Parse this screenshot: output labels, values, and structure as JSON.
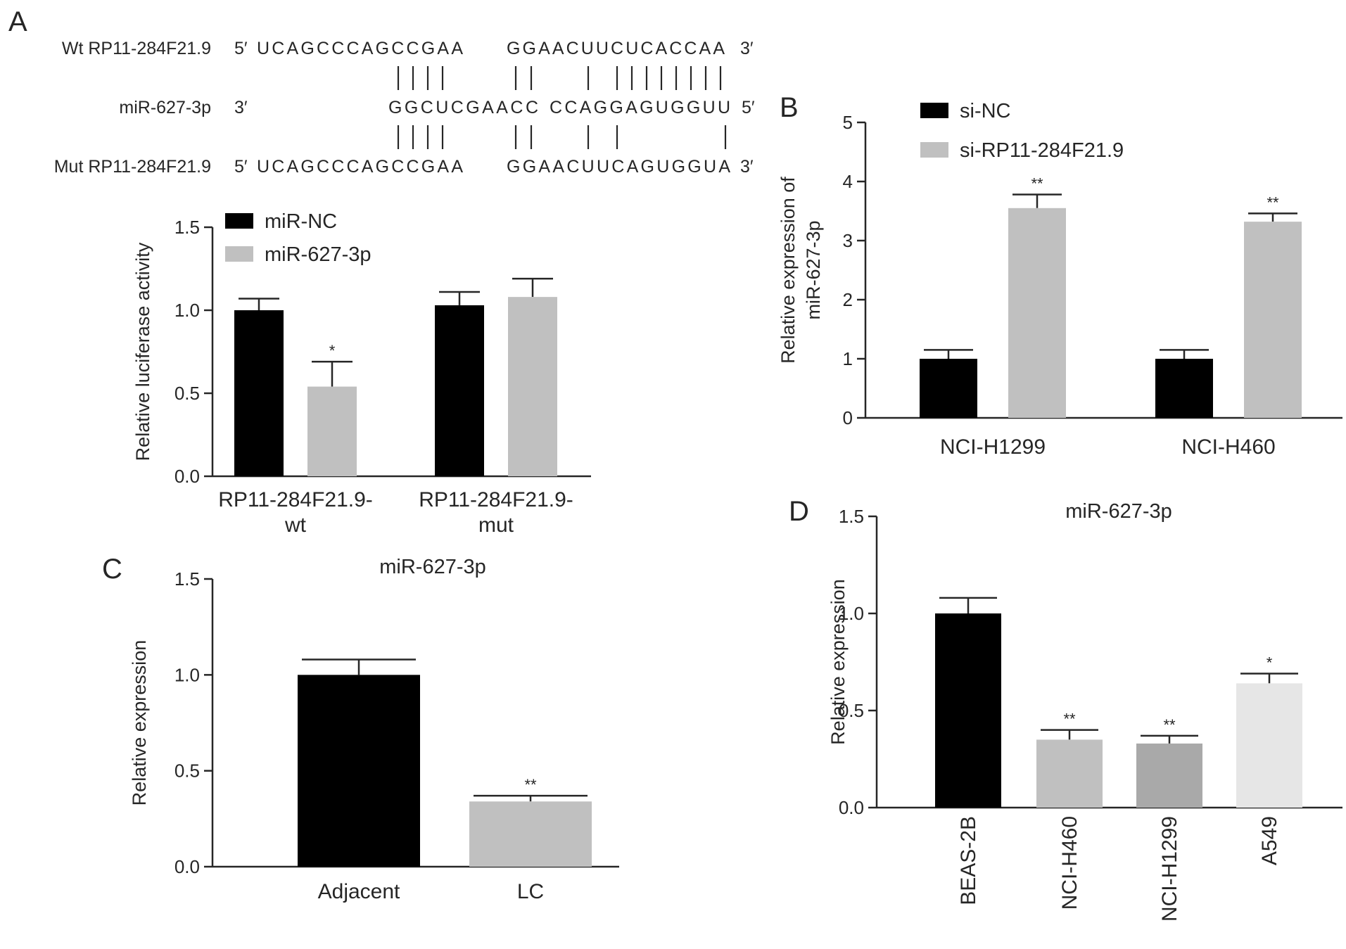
{
  "panel_labels": [
    "A",
    "B",
    "C",
    "D"
  ],
  "sequence_alignment": {
    "rows": [
      {
        "name": "Wt RP11-284F21.9",
        "end5": "5′",
        "left": "UCAGCCCAGCCGAA",
        "right": "GGAACUUCUCACCAA",
        "end3": "3′"
      },
      {
        "name": "miR-627-3p",
        "end5": "3′",
        "left": "GGCUCGAACC",
        "right": "CCAGGAGUGGUU",
        "end3": "5′"
      },
      {
        "name": "Mut RP11-284F21.9",
        "end5": "5′",
        "left": "UCAGCCCAGCCGAA",
        "right": "GGAACUUCAGUGGUA",
        "end3": "3′"
      }
    ]
  },
  "chart_data": [
    {
      "panel": "A",
      "type": "bar",
      "title": "",
      "ylabel": "Relative luciferase activity",
      "xlabel": "",
      "ylim": [
        0,
        1.5
      ],
      "yticks": [
        "0.0",
        "0.5",
        "1.0",
        "1.5"
      ],
      "categories": [
        [
          "RP11-284F21.9-",
          "wt"
        ],
        [
          "RP11-284F21.9-",
          "mut"
        ]
      ],
      "series": [
        {
          "name": "miR-NC",
          "color": "#000000",
          "values": [
            1.0,
            1.03
          ],
          "errors": [
            0.07,
            0.08
          ],
          "sig": [
            "",
            ""
          ]
        },
        {
          "name": "miR-627-3p",
          "color": "#c0c0c0",
          "values": [
            0.54,
            1.08
          ],
          "errors": [
            0.15,
            0.11
          ],
          "sig": [
            "*",
            ""
          ]
        }
      ],
      "legend": "top-left"
    },
    {
      "panel": "B",
      "type": "bar",
      "title": "",
      "ylabel": [
        "Relative expression of",
        "miR-627-3p"
      ],
      "xlabel": "",
      "ylim": [
        0,
        5
      ],
      "yticks": [
        "0",
        "1",
        "2",
        "3",
        "4",
        "5"
      ],
      "categories": [
        [
          "NCI-H1299"
        ],
        [
          "NCI-H460"
        ]
      ],
      "series": [
        {
          "name": "si-NC",
          "color": "#000000",
          "values": [
            1.0,
            1.0
          ],
          "errors": [
            0.15,
            0.15
          ],
          "sig": [
            "",
            ""
          ]
        },
        {
          "name": "si-RP11-284F21.9",
          "color": "#c0c0c0",
          "values": [
            3.55,
            3.32
          ],
          "errors": [
            0.23,
            0.14
          ],
          "sig": [
            "**",
            "**"
          ]
        }
      ],
      "legend": "top-left"
    },
    {
      "panel": "C",
      "type": "bar",
      "title": "miR-627-3p",
      "ylabel": "Relative expression",
      "xlabel": "",
      "ylim": [
        0,
        1.5
      ],
      "yticks": [
        "0.0",
        "0.5",
        "1.0",
        "1.5"
      ],
      "categories": [
        "Adjacent",
        "LC"
      ],
      "values": [
        1.0,
        0.34
      ],
      "errors": [
        0.08,
        0.03
      ],
      "colors": [
        "#000000",
        "#c0c0c0"
      ],
      "sig": [
        "",
        "**"
      ]
    },
    {
      "panel": "D",
      "type": "bar",
      "title": "miR-627-3p",
      "ylabel": "Relative expression",
      "xlabel": "",
      "ylim": [
        0,
        1.5
      ],
      "yticks": [
        "0.0",
        "0.5",
        "1.0",
        "1.5"
      ],
      "categories": [
        "BEAS-2B",
        "NCI-H460",
        "NCI-H1299",
        "A549"
      ],
      "values": [
        1.0,
        0.35,
        0.33,
        0.64
      ],
      "errors": [
        0.08,
        0.05,
        0.04,
        0.05
      ],
      "colors": [
        "#000000",
        "#c0c0c0",
        "#a9a9a9",
        "#e6e6e6"
      ],
      "sig": [
        "",
        "**",
        "**",
        "*"
      ],
      "rotated_labels": true
    }
  ]
}
